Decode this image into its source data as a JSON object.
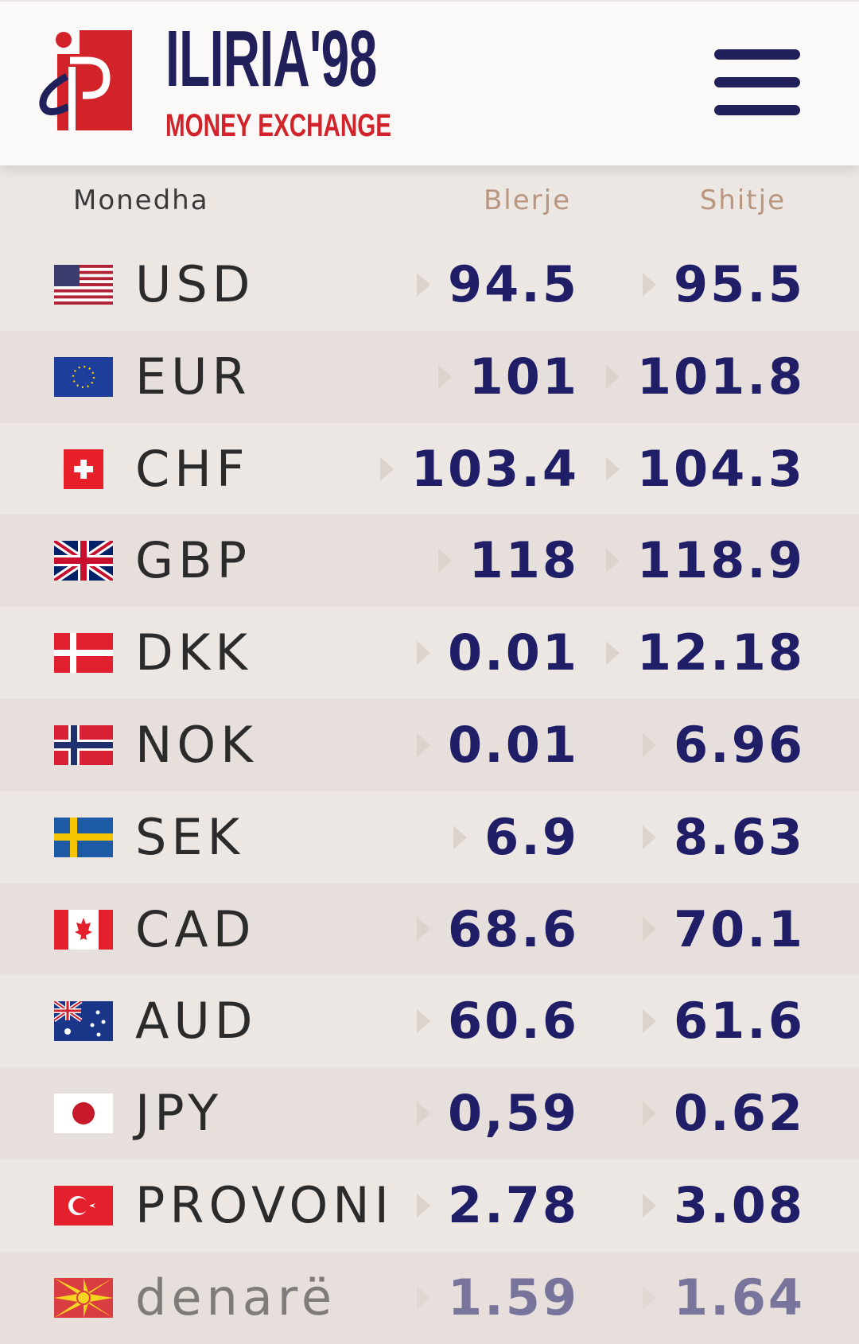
{
  "brand": {
    "name": "ILIRIA'98",
    "subtitle": "MONEY EXCHANGE"
  },
  "colors": {
    "navy": "#22205a",
    "brand_red": "#d2232a",
    "value_text": "#1f1e66",
    "header_bg": "#fbf9f7",
    "row_bg": "#ede7e4",
    "row_alt_bg": "#e6dfdc"
  },
  "table": {
    "headers": {
      "currency": "Monedha",
      "buy": "Blerje",
      "sell": "Shitje"
    },
    "rows": [
      {
        "flag": "us-flag-icon",
        "code": "USD",
        "buy": "94.5",
        "sell": "95.5"
      },
      {
        "flag": "eu-flag-icon",
        "code": "EUR",
        "buy": "101",
        "sell": "101.8"
      },
      {
        "flag": "ch-flag-icon",
        "code": "CHF",
        "buy": "103.4",
        "sell": "104.3"
      },
      {
        "flag": "gb-flag-icon",
        "code": "GBP",
        "buy": "118",
        "sell": "118.9"
      },
      {
        "flag": "dk-flag-icon",
        "code": "DKK",
        "buy": "0.01",
        "sell": "12.18"
      },
      {
        "flag": "no-flag-icon",
        "code": "NOK",
        "buy": "0.01",
        "sell": "6.96"
      },
      {
        "flag": "se-flag-icon",
        "code": "SEK",
        "buy": "6.9",
        "sell": "8.63"
      },
      {
        "flag": "ca-flag-icon",
        "code": "CAD",
        "buy": "68.6",
        "sell": "70.1"
      },
      {
        "flag": "au-flag-icon",
        "code": "AUD",
        "buy": "60.6",
        "sell": "61.6"
      },
      {
        "flag": "jp-flag-icon",
        "code": "JPY",
        "buy": "0,59",
        "sell": "0.62"
      },
      {
        "flag": "tr-flag-icon",
        "code": "PROVONI",
        "buy": "2.78",
        "sell": "3.08"
      },
      {
        "flag": "mk-flag-icon",
        "code": "denarë",
        "buy": "1.59",
        "sell": "1.64"
      }
    ]
  }
}
